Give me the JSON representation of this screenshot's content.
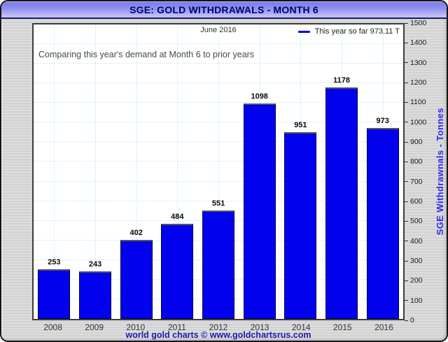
{
  "window": {
    "title": "SGE: GOLD WITHDRAWALS - MONTH 6"
  },
  "chart": {
    "subtitle": "June 2016",
    "legend_label": "This year so far 973.11 T",
    "annotation": "Comparing this year's demand at Month 6 to prior years",
    "y_axis_title": "SGE Withdrawnals - Tonnes",
    "footer": "world gold charts © www.goldchartsrus.com"
  },
  "chart_data": {
    "type": "bar",
    "title": "SGE: GOLD WITHDRAWALS - MONTH 6",
    "subtitle": "June 2016",
    "categories": [
      "2008",
      "2009",
      "2010",
      "2011",
      "2012",
      "2013",
      "2014",
      "2015",
      "2016"
    ],
    "values": [
      253,
      243,
      402,
      484,
      551,
      1098,
      951,
      1178,
      973
    ],
    "bar_labels": [
      "253",
      "243",
      "402",
      "484",
      "551",
      "1098",
      "951",
      "1178",
      "973"
    ],
    "xlabel": "",
    "ylabel": "SGE Withdrawnals - Tonnes",
    "ylim": [
      0,
      1500
    ],
    "ytick_step": 100,
    "grid": true,
    "legend": [
      {
        "label": "This year so far 973.11 T",
        "color": "#0202ee"
      }
    ],
    "legend_position": "top-right",
    "annotations": [
      "Comparing this year's demand at Month 6 to prior years"
    ]
  },
  "colors": {
    "bar": "#0202ee",
    "bar_border": "#00004c",
    "titlebar_top": "#7878ec",
    "titlebar_bottom": "#c8c8f5",
    "title_text": "#000070",
    "grid": "#bdeaf2",
    "axis_text": "#1b1b1b",
    "footer_text": "#1c1cb4",
    "y_axis_title_text": "#2929ef",
    "window_bg": "#d6d6d6"
  }
}
